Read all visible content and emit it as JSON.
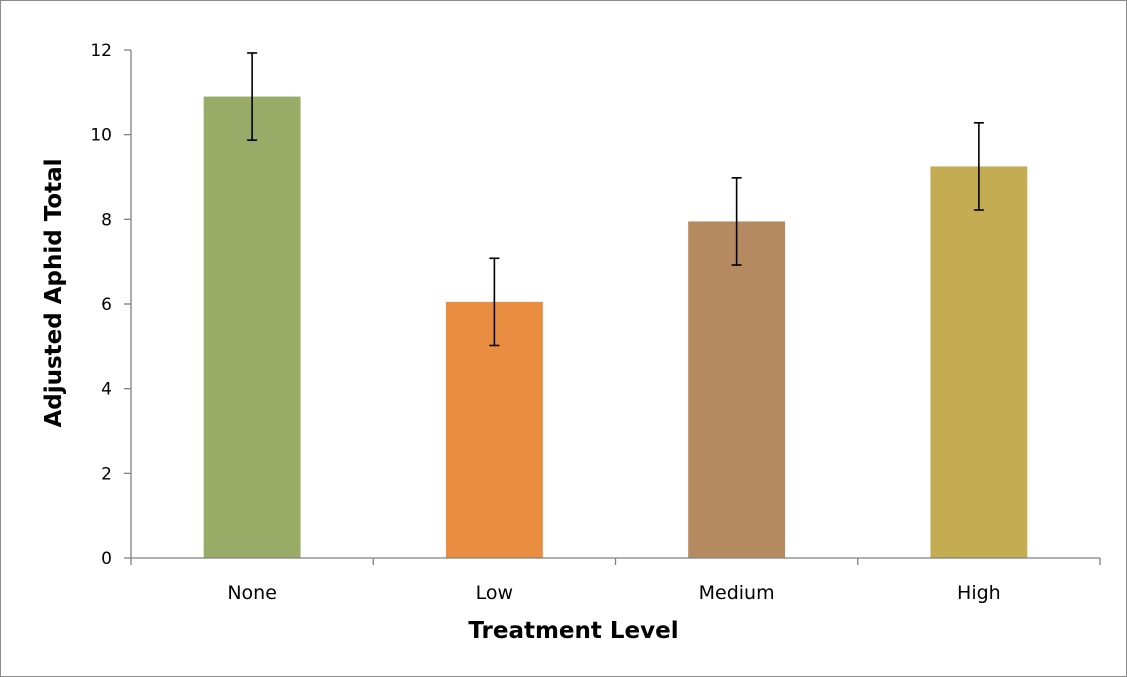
{
  "chart_data": {
    "type": "bar",
    "title": "",
    "xlabel": "Treatment Level",
    "ylabel": "Adjusted Aphid Total",
    "categories": [
      "None",
      "Low",
      "Medium",
      "High"
    ],
    "values": [
      10.9,
      6.05,
      7.95,
      9.25
    ],
    "error": [
      1.03,
      1.03,
      1.03,
      1.03
    ],
    "colors": [
      "#9aab67",
      "#e98d41",
      "#b58a60",
      "#c4ac52"
    ],
    "ylim": [
      0,
      12
    ],
    "yticks": [
      "0",
      "2",
      "4",
      "6",
      "8",
      "10",
      "12"
    ],
    "grid": false,
    "legend": "none"
  }
}
